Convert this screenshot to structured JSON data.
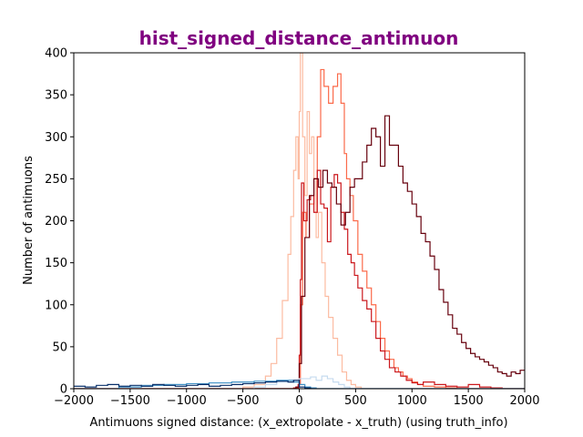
{
  "chart_data": {
    "type": "line",
    "title": "hist_signed_distance_antimuon",
    "xlabel": "Antimuons signed distance: (x_extropolate - x_truth) (using truth_info)",
    "ylabel": "Number of antimuons",
    "xlim": [
      -2000,
      2000
    ],
    "ylim": [
      0,
      400
    ],
    "xticks": [
      -2000,
      -1500,
      -1000,
      -500,
      0,
      500,
      1000,
      1500,
      2000
    ],
    "yticks": [
      0,
      50,
      100,
      150,
      200,
      250,
      300,
      350,
      400
    ],
    "xtick_labels": [
      "−2000",
      "−1500",
      "−1000",
      "−500",
      "0",
      "500",
      "1000",
      "1500",
      "2000"
    ],
    "ytick_labels": [
      "0",
      "50",
      "100",
      "150",
      "200",
      "250",
      "300",
      "350",
      "400"
    ],
    "grid": false,
    "legend": "none",
    "title_color": "#800080",
    "histogram_style": "step",
    "series": [
      {
        "color": "#fcbba1",
        "points": [
          [
            -2000,
            0
          ],
          [
            -600,
            0
          ],
          [
            -500,
            2
          ],
          [
            -400,
            5
          ],
          [
            -300,
            15
          ],
          [
            -250,
            30
          ],
          [
            -200,
            60
          ],
          [
            -150,
            105
          ],
          [
            -100,
            160
          ],
          [
            -75,
            205
          ],
          [
            -50,
            260
          ],
          [
            -30,
            300
          ],
          [
            -10,
            250
          ],
          [
            0,
            330
          ],
          [
            10,
            400
          ],
          [
            20,
            400
          ],
          [
            30,
            300
          ],
          [
            50,
            230
          ],
          [
            70,
            330
          ],
          [
            90,
            280
          ],
          [
            110,
            300
          ],
          [
            130,
            250
          ],
          [
            150,
            180
          ],
          [
            170,
            210
          ],
          [
            200,
            150
          ],
          [
            230,
            110
          ],
          [
            260,
            85
          ],
          [
            300,
            60
          ],
          [
            340,
            40
          ],
          [
            380,
            20
          ],
          [
            420,
            10
          ],
          [
            460,
            5
          ],
          [
            500,
            2
          ],
          [
            550,
            0
          ],
          [
            2000,
            0
          ]
        ]
      },
      {
        "color": "#fb6a4a",
        "points": [
          [
            -2000,
            0
          ],
          [
            -50,
            0
          ],
          [
            -20,
            1
          ],
          [
            0,
            5
          ],
          [
            10,
            100
          ],
          [
            30,
            210
          ],
          [
            60,
            180
          ],
          [
            90,
            220
          ],
          [
            130,
            250
          ],
          [
            160,
            300
          ],
          [
            190,
            380
          ],
          [
            220,
            360
          ],
          [
            260,
            340
          ],
          [
            300,
            360
          ],
          [
            340,
            375
          ],
          [
            370,
            340
          ],
          [
            400,
            280
          ],
          [
            420,
            250
          ],
          [
            450,
            230
          ],
          [
            480,
            200
          ],
          [
            520,
            160
          ],
          [
            560,
            140
          ],
          [
            600,
            120
          ],
          [
            640,
            100
          ],
          [
            680,
            80
          ],
          [
            720,
            60
          ],
          [
            760,
            45
          ],
          [
            800,
            35
          ],
          [
            840,
            25
          ],
          [
            880,
            20
          ],
          [
            920,
            15
          ],
          [
            960,
            12
          ],
          [
            1000,
            8
          ],
          [
            1050,
            5
          ],
          [
            1100,
            3
          ],
          [
            1200,
            2
          ],
          [
            1300,
            1
          ],
          [
            1400,
            0
          ],
          [
            2000,
            0
          ]
        ]
      },
      {
        "color": "#cb181d",
        "points": [
          [
            -2000,
            0
          ],
          [
            -100,
            0
          ],
          [
            -50,
            1
          ],
          [
            -10,
            5
          ],
          [
            0,
            40
          ],
          [
            10,
            130
          ],
          [
            20,
            245
          ],
          [
            40,
            200
          ],
          [
            70,
            225
          ],
          [
            100,
            230
          ],
          [
            130,
            210
          ],
          [
            160,
            260
          ],
          [
            190,
            220
          ],
          [
            220,
            215
          ],
          [
            250,
            175
          ],
          [
            280,
            240
          ],
          [
            310,
            255
          ],
          [
            340,
            245
          ],
          [
            370,
            210
          ],
          [
            400,
            190
          ],
          [
            430,
            160
          ],
          [
            460,
            150
          ],
          [
            490,
            135
          ],
          [
            520,
            120
          ],
          [
            560,
            105
          ],
          [
            600,
            95
          ],
          [
            640,
            80
          ],
          [
            680,
            60
          ],
          [
            720,
            45
          ],
          [
            760,
            35
          ],
          [
            800,
            25
          ],
          [
            850,
            20
          ],
          [
            900,
            15
          ],
          [
            950,
            10
          ],
          [
            1000,
            7
          ],
          [
            1050,
            5
          ],
          [
            1100,
            8
          ],
          [
            1200,
            5
          ],
          [
            1300,
            3
          ],
          [
            1400,
            2
          ],
          [
            1500,
            5
          ],
          [
            1600,
            2
          ],
          [
            1700,
            1
          ],
          [
            1800,
            0
          ],
          [
            2000,
            0
          ]
        ]
      },
      {
        "color": "#67000d",
        "points": [
          [
            -2000,
            0
          ],
          [
            -100,
            0
          ],
          [
            -30,
            2
          ],
          [
            0,
            30
          ],
          [
            20,
            110
          ],
          [
            50,
            180
          ],
          [
            90,
            230
          ],
          [
            130,
            250
          ],
          [
            170,
            240
          ],
          [
            210,
            260
          ],
          [
            250,
            245
          ],
          [
            290,
            240
          ],
          [
            330,
            220
          ],
          [
            370,
            195
          ],
          [
            410,
            210
          ],
          [
            450,
            240
          ],
          [
            490,
            250
          ],
          [
            530,
            250
          ],
          [
            560,
            270
          ],
          [
            600,
            290
          ],
          [
            640,
            310
          ],
          [
            680,
            300
          ],
          [
            720,
            265
          ],
          [
            760,
            325
          ],
          [
            800,
            290
          ],
          [
            840,
            290
          ],
          [
            880,
            265
          ],
          [
            920,
            245
          ],
          [
            960,
            235
          ],
          [
            1000,
            220
          ],
          [
            1040,
            205
          ],
          [
            1080,
            185
          ],
          [
            1120,
            175
          ],
          [
            1160,
            158
          ],
          [
            1200,
            142
          ],
          [
            1240,
            118
          ],
          [
            1280,
            103
          ],
          [
            1320,
            88
          ],
          [
            1360,
            72
          ],
          [
            1400,
            65
          ],
          [
            1440,
            55
          ],
          [
            1480,
            48
          ],
          [
            1520,
            42
          ],
          [
            1560,
            38
          ],
          [
            1600,
            35
          ],
          [
            1640,
            32
          ],
          [
            1680,
            28
          ],
          [
            1720,
            25
          ],
          [
            1760,
            20
          ],
          [
            1800,
            18
          ],
          [
            1840,
            15
          ],
          [
            1880,
            20
          ],
          [
            1920,
            18
          ],
          [
            1960,
            22
          ],
          [
            2000,
            22
          ]
        ]
      },
      {
        "color": "#c6dbef",
        "points": [
          [
            -2000,
            0
          ],
          [
            -500,
            0
          ],
          [
            -400,
            2
          ],
          [
            -300,
            5
          ],
          [
            -200,
            8
          ],
          [
            -100,
            10
          ],
          [
            0,
            12
          ],
          [
            100,
            14
          ],
          [
            150,
            10
          ],
          [
            200,
            15
          ],
          [
            250,
            12
          ],
          [
            300,
            8
          ],
          [
            350,
            5
          ],
          [
            400,
            2
          ],
          [
            450,
            0
          ],
          [
            2000,
            0
          ]
        ]
      },
      {
        "color": "#4292c6",
        "points": [
          [
            -2000,
            0
          ],
          [
            -1600,
            2
          ],
          [
            -1400,
            4
          ],
          [
            -1200,
            5
          ],
          [
            -1000,
            6
          ],
          [
            -800,
            7
          ],
          [
            -600,
            8
          ],
          [
            -400,
            9
          ],
          [
            -300,
            9
          ],
          [
            -200,
            10
          ],
          [
            -100,
            10
          ],
          [
            -50,
            8
          ],
          [
            0,
            5
          ],
          [
            50,
            2
          ],
          [
            100,
            1
          ],
          [
            150,
            0
          ],
          [
            2000,
            0
          ]
        ]
      },
      {
        "color": "#08306b",
        "points": [
          [
            -2000,
            3
          ],
          [
            -1900,
            2
          ],
          [
            -1800,
            4
          ],
          [
            -1700,
            5
          ],
          [
            -1600,
            3
          ],
          [
            -1500,
            4
          ],
          [
            -1400,
            3
          ],
          [
            -1300,
            5
          ],
          [
            -1200,
            4
          ],
          [
            -1100,
            3
          ],
          [
            -1000,
            4
          ],
          [
            -900,
            5
          ],
          [
            -800,
            3
          ],
          [
            -700,
            4
          ],
          [
            -600,
            5
          ],
          [
            -500,
            6
          ],
          [
            -400,
            7
          ],
          [
            -300,
            8
          ],
          [
            -200,
            9
          ],
          [
            -100,
            8
          ],
          [
            -50,
            10
          ],
          [
            0,
            2
          ],
          [
            50,
            1
          ],
          [
            100,
            0
          ],
          [
            2000,
            0
          ]
        ]
      }
    ]
  }
}
